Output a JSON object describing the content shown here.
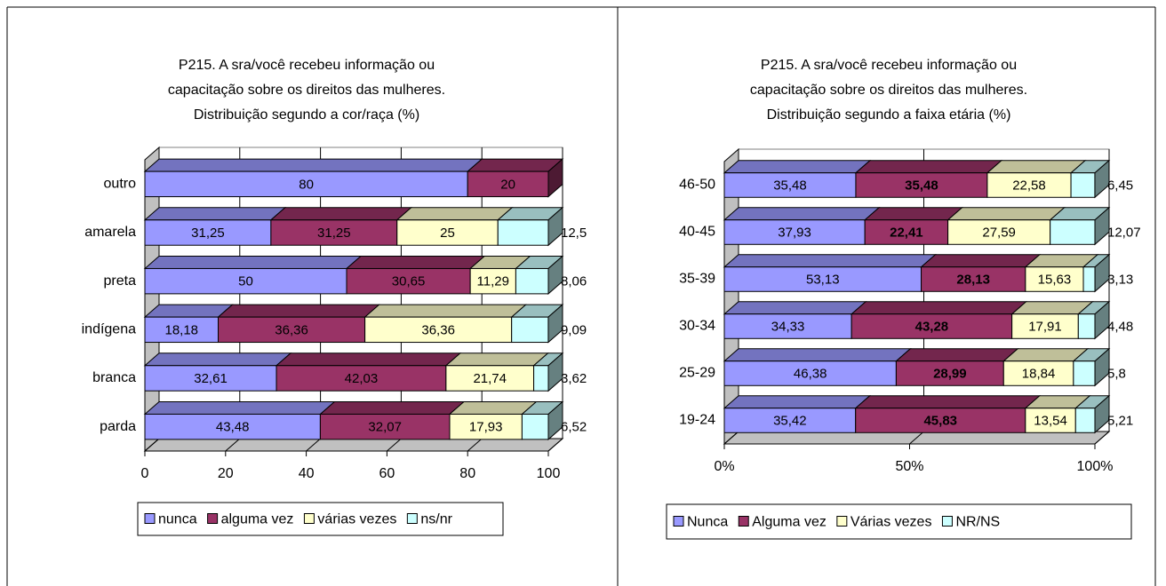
{
  "chart_data": [
    {
      "type": "bar3d_stacked_h",
      "title": [
        "P215. A sra/você recebeu informação ou",
        "capacitação sobre os direitos das mulheres.",
        "Distribuição segundo a cor/raça (%)"
      ],
      "categories": [
        "parda",
        "branca",
        "indígena",
        "preta",
        "amarela",
        "outro"
      ],
      "series": [
        {
          "name": "nunca",
          "color": "#9999ff",
          "values": [
            43.48,
            32.61,
            18.18,
            50,
            31.25,
            80
          ],
          "value_labels": [
            "43,48",
            "32,61",
            "18,18",
            "50",
            "31,25",
            "80"
          ]
        },
        {
          "name": "alguma vez",
          "color": "#993366",
          "values": [
            32.07,
            42.03,
            36.36,
            30.65,
            31.25,
            20
          ],
          "value_labels": [
            "32,07",
            "42,03",
            "36,36",
            "30,65",
            "31,25",
            "20"
          ]
        },
        {
          "name": "várias vezes",
          "color": "#ffffcc",
          "values": [
            17.93,
            21.74,
            36.36,
            11.29,
            25,
            null
          ],
          "value_labels": [
            "17,93",
            "21,74",
            "36,36",
            "11,29",
            "25",
            null
          ]
        },
        {
          "name": "ns/nr",
          "color": "#ccffff",
          "values": [
            6.52,
            3.62,
            9.09,
            8.06,
            12.5,
            null
          ],
          "value_labels": [
            "6,52",
            "3,62",
            "9,09",
            "8,06",
            "12,5",
            null
          ]
        }
      ],
      "xlim": [
        0,
        100
      ],
      "xticks": [
        0,
        20,
        40,
        60,
        80,
        100
      ],
      "grid": true,
      "legend": "bottom"
    },
    {
      "type": "bar3d_stacked_h",
      "title": [
        "P215. A sra/você recebeu informação ou",
        "capacitação sobre os direitos das mulheres.",
        "Distribuição segundo a faixa etária (%)"
      ],
      "categories": [
        "19-24",
        "25-29",
        "30-34",
        "35-39",
        "40-45",
        "46-50"
      ],
      "series": [
        {
          "name": "Nunca",
          "color": "#9999ff",
          "values": [
            35.42,
            46.38,
            34.33,
            53.13,
            37.93,
            35.48
          ],
          "value_labels": [
            "35,42",
            "46,38",
            "34,33",
            "53,13",
            "37,93",
            "35,48"
          ]
        },
        {
          "name": "Alguma vez",
          "color": "#993366",
          "label_weight": "bold",
          "values": [
            45.83,
            28.99,
            43.28,
            28.13,
            22.41,
            35.48
          ],
          "value_labels": [
            "45,83",
            "28,99",
            "43,28",
            "28,13",
            "22,41",
            "35,48"
          ]
        },
        {
          "name": "Várias vezes",
          "color": "#ffffcc",
          "values": [
            13.54,
            18.84,
            17.91,
            15.63,
            27.59,
            22.58
          ],
          "value_labels": [
            "13,54",
            "18,84",
            "17,91",
            "15,63",
            "27,59",
            "22,58"
          ]
        },
        {
          "name": "NR/NS",
          "color": "#ccffff",
          "values": [
            5.21,
            5.8,
            4.48,
            3.13,
            12.07,
            6.45
          ],
          "value_labels": [
            "5,21",
            "5,8",
            "4,48",
            "3,13",
            "12,07",
            "6,45"
          ]
        }
      ],
      "xlim": [
        0,
        100
      ],
      "xticks": [
        {
          "value": 0,
          "label": "0%"
        },
        {
          "value": 50,
          "label": "50%"
        },
        {
          "value": 100,
          "label": "100%"
        }
      ],
      "grid": true,
      "legend": "bottom"
    }
  ]
}
